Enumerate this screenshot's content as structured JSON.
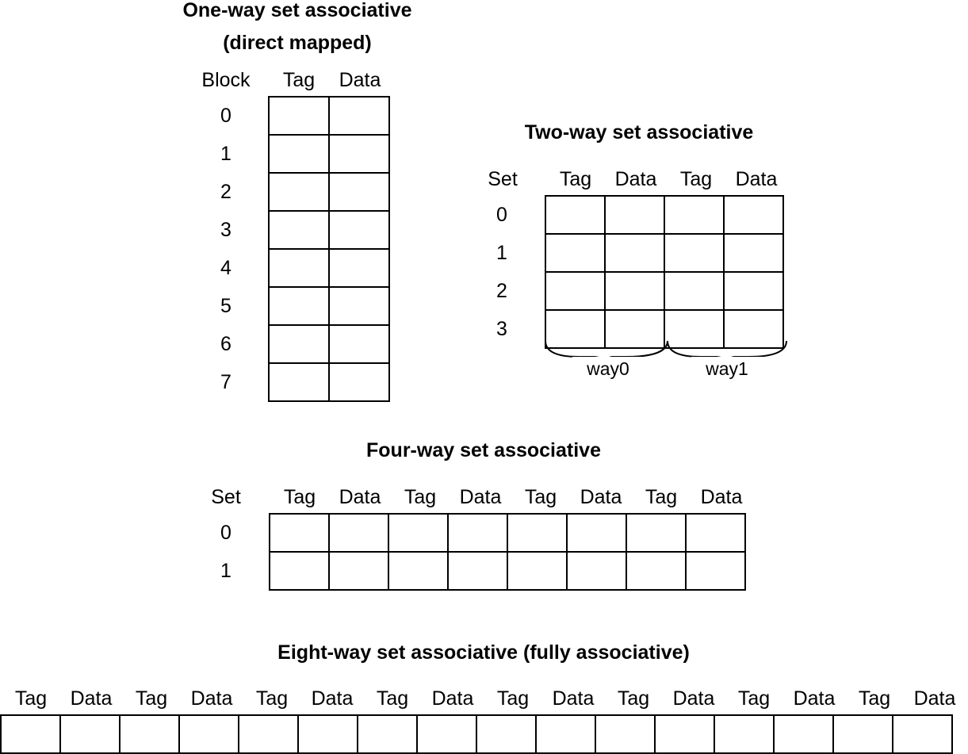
{
  "one_way": {
    "title_line1": "One-way set associative",
    "title_line2": "(direct mapped)",
    "row_header": "Block",
    "columns": [
      "Tag",
      "Data"
    ],
    "rows": [
      "0",
      "1",
      "2",
      "3",
      "4",
      "5",
      "6",
      "7"
    ]
  },
  "two_way": {
    "title": "Two-way set associative",
    "row_header": "Set",
    "columns": [
      "Tag",
      "Data",
      "Tag",
      "Data"
    ],
    "rows": [
      "0",
      "1",
      "2",
      "3"
    ],
    "ways": [
      "way0",
      "way1"
    ]
  },
  "four_way": {
    "title": "Four-way set associative",
    "row_header": "Set",
    "columns": [
      "Tag",
      "Data",
      "Tag",
      "Data",
      "Tag",
      "Data",
      "Tag",
      "Data"
    ],
    "rows": [
      "0",
      "1"
    ]
  },
  "eight_way": {
    "title": "Eight-way set associative (fully associative)",
    "columns": [
      "Tag",
      "Data",
      "Tag",
      "Data",
      "Tag",
      "Data",
      "Tag",
      "Data",
      "Tag",
      "Data",
      "Tag",
      "Data",
      "Tag",
      "Data",
      "Tag",
      "Data"
    ]
  }
}
